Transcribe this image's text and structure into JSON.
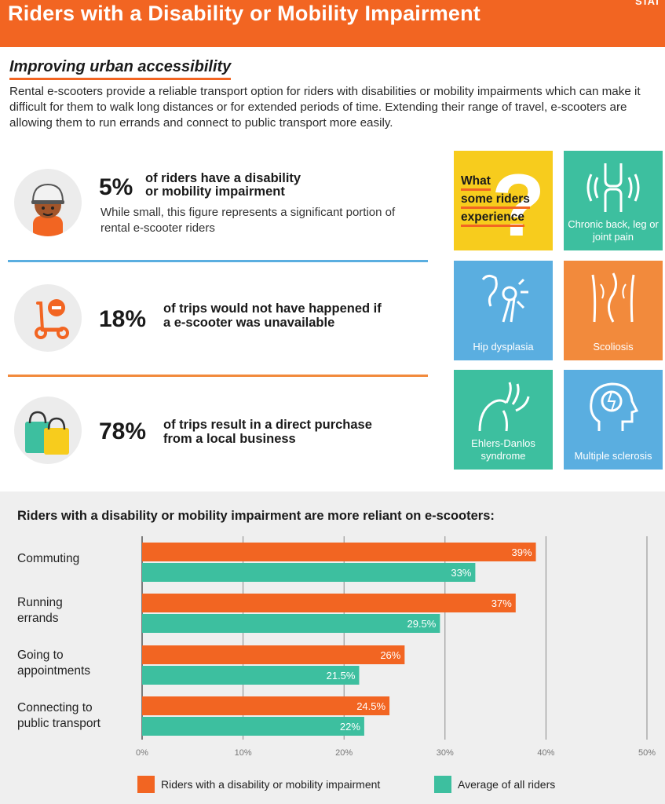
{
  "header": {
    "title": "Riders with a Disability or Mobility Impairment",
    "corner_text": "STAT"
  },
  "section": {
    "subtitle": "Improving urban accessibility",
    "intro": "Rental e-scooters provide a reliable transport option for riders with disabilities or mobility impairments which can make it difficult for them to walk long distances or for extended periods of time. Extending their range of travel, e-scooters are allowing them to run errands and connect to public transport more easily."
  },
  "stats": [
    {
      "pct": "5%",
      "text_line1": "of           riders have a disability",
      "text_line2": "or mobility impairment",
      "sub": "While small, this figure represents a significant portion of rental e-scooter riders"
    },
    {
      "pct": "18%",
      "text_line1": "of trips would not have happened if",
      "text_line2": "a              e-scooter was unavailable"
    },
    {
      "pct": "78%",
      "text_line1": "of trips result in a direct purchase",
      "text_line2": "from a local business"
    }
  ],
  "experience": {
    "heading_line1": "What",
    "heading_line2": "some riders",
    "heading_line3": "experience",
    "tiles": [
      {
        "label": "Chronic back, leg or joint pain",
        "color": "#3dbf9f",
        "icon": "knee-joint-icon"
      },
      {
        "label": "Hip dysplasia",
        "color": "#5aaee0",
        "icon": "hip-joint-icon"
      },
      {
        "label": "Scoliosis",
        "color": "#f28a3c",
        "icon": "spine-back-icon"
      },
      {
        "label": "Ehlers-Danlos syndrome",
        "color": "#3dbf9f",
        "icon": "flexible-arm-icon"
      },
      {
        "label": "Multiple sclerosis",
        "color": "#5aaee0",
        "icon": "head-brain-icon"
      }
    ],
    "heading_tile_color": "#f7cc1d"
  },
  "colors": {
    "orange": "#f26522",
    "teal": "#3dbf9f",
    "blue_divider": "#5aaee0"
  },
  "chart_data": {
    "type": "bar",
    "orientation": "horizontal",
    "title": "Riders with a disability or mobility impairment are more reliant on e-scooters:",
    "categories": [
      "Commuting",
      "Running errands",
      "Going to appointments",
      "Connecting to public transport"
    ],
    "category_lines": [
      [
        "Commuting"
      ],
      [
        "Running",
        "errands"
      ],
      [
        "Going to",
        "appointments"
      ],
      [
        "Connecting to",
        "public transport"
      ]
    ],
    "series": [
      {
        "name": "Riders with a disability or mobility impairment",
        "values": [
          39,
          37,
          26,
          24.5
        ],
        "labels": [
          "39%",
          "37%",
          "26%",
          "24.5%"
        ],
        "color": "#f26522"
      },
      {
        "name": "Average of all riders",
        "values": [
          33,
          29.5,
          21.5,
          22
        ],
        "labels": [
          "33%",
          "29.5%",
          "21.5%",
          "22%"
        ],
        "color": "#3dbf9f"
      }
    ],
    "xlim": [
      0,
      50
    ],
    "xticks": [
      "0%",
      "10%",
      "20%",
      "30%",
      "40%",
      "50%"
    ],
    "grid": true,
    "legend": "bottom"
  }
}
